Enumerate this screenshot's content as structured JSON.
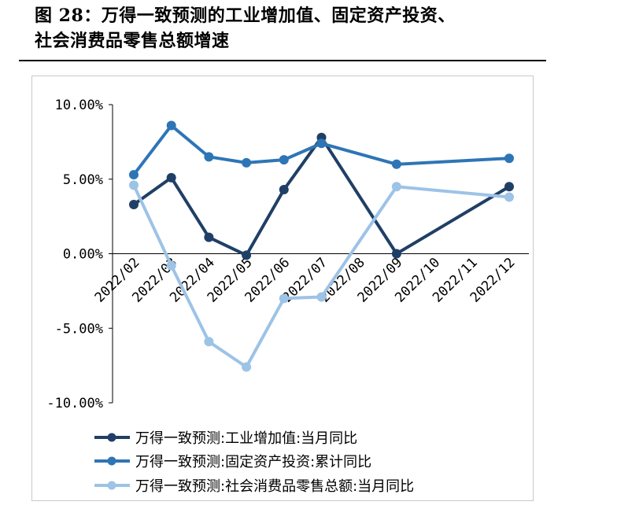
{
  "figure": {
    "title_line1": "图 28：万得一致预测的工业增加值、固定资产投资、",
    "title_line2": "社会消费品零售总额增速"
  },
  "chart_data": {
    "type": "line",
    "categories": [
      "2022/02",
      "2022/03",
      "2022/04",
      "2022/05",
      "2022/06",
      "2022/07",
      "2022/08",
      "2022/09",
      "2022/10",
      "2022/11",
      "2022/12"
    ],
    "ylim": [
      -10,
      10
    ],
    "yticks": [
      10,
      5,
      0,
      -5,
      -10
    ],
    "ytick_labels": [
      "10.00%",
      "5.00%",
      "0.00%",
      "-5.00%",
      "-10.00%"
    ],
    "grid": false,
    "legend_position": "bottom",
    "series": [
      {
        "name": "万得一致预测:工业增加值:当月同比",
        "color": "#1f3f66",
        "values": [
          3.3,
          5.1,
          1.1,
          -0.1,
          4.3,
          7.8,
          null,
          0.0,
          null,
          null,
          4.5
        ]
      },
      {
        "name": "万得一致预测:固定资产投资:累计同比",
        "color": "#2e75b6",
        "values": [
          5.3,
          8.6,
          6.5,
          6.1,
          6.3,
          7.4,
          null,
          6.0,
          null,
          null,
          6.4
        ]
      },
      {
        "name": "万得一致预测:社会消费品零售总额:当月同比",
        "color": "#9dc3e6",
        "values": [
          4.6,
          -0.8,
          -5.9,
          -7.6,
          -3.0,
          -2.9,
          null,
          4.5,
          null,
          null,
          3.8
        ]
      }
    ]
  }
}
